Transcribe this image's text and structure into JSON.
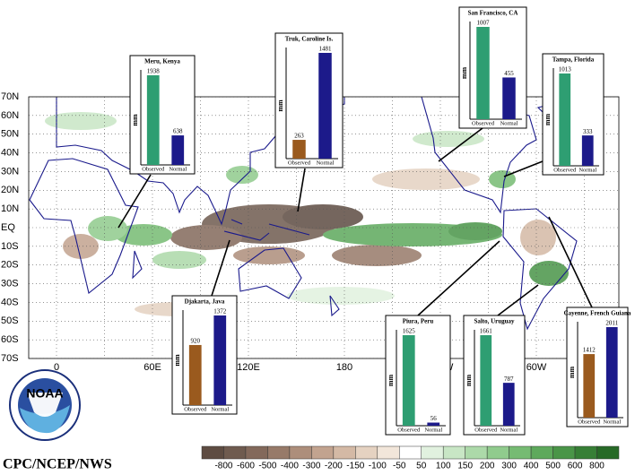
{
  "map": {
    "lat_labels": [
      "70N",
      "60N",
      "50N",
      "40N",
      "30N",
      "20N",
      "10N",
      "EQ",
      "10S",
      "20S",
      "30S",
      "40S",
      "50S",
      "60S",
      "70S"
    ],
    "lon_labels": [
      "0",
      "60E",
      "120E",
      "180",
      "120W",
      "60W"
    ]
  },
  "insets": [
    {
      "title": "Meru, Kenya",
      "ylabel": "mm",
      "categories": [
        "Observed",
        "Normal"
      ],
      "values": [
        1938,
        638
      ],
      "colors": [
        "#2e9e72",
        "#1c1a8a"
      ]
    },
    {
      "title": "Truk, Caroline Is.",
      "ylabel": "mm",
      "categories": [
        "Observed",
        "Normal"
      ],
      "values": [
        263,
        1481
      ],
      "colors": [
        "#9a5a1e",
        "#1c1a8a"
      ]
    },
    {
      "title": "San Francisco, CA",
      "ylabel": "mm",
      "categories": [
        "Observed",
        "Normal"
      ],
      "values": [
        1007,
        455
      ],
      "colors": [
        "#2e9e72",
        "#1c1a8a"
      ]
    },
    {
      "title": "Tampa, Florida",
      "ylabel": "mm",
      "categories": [
        "Observed",
        "Normal"
      ],
      "values": [
        1013,
        333
      ],
      "colors": [
        "#2e9e72",
        "#1c1a8a"
      ]
    },
    {
      "title": "Djakarta, Java",
      "ylabel": "mm",
      "categories": [
        "Observed",
        "Normal"
      ],
      "values": [
        920,
        1372
      ],
      "colors": [
        "#9a5a1e",
        "#1c1a8a"
      ]
    },
    {
      "title": "Piura, Peru",
      "ylabel": "mm",
      "categories": [
        "Observed",
        "Normal"
      ],
      "values": [
        1625,
        56
      ],
      "colors": [
        "#2e9e72",
        "#1c1a8a"
      ]
    },
    {
      "title": "Salto, Uruguay",
      "ylabel": "mm",
      "categories": [
        "Observed",
        "Normal"
      ],
      "values": [
        1661,
        787
      ],
      "colors": [
        "#2e9e72",
        "#1c1a8a"
      ]
    },
    {
      "title": "Cayenne, French Guiana",
      "ylabel": "mm",
      "categories": [
        "Observed",
        "Normal"
      ],
      "values": [
        1412,
        2011
      ],
      "colors": [
        "#9a5a1e",
        "#1c1a8a"
      ]
    }
  ],
  "legend": {
    "labels": [
      -800,
      -600,
      -500,
      -400,
      -300,
      -200,
      -150,
      -100,
      -50,
      50,
      100,
      150,
      200,
      300,
      400,
      500,
      600,
      800
    ],
    "colors": [
      "#5e4c42",
      "#6f5b4f",
      "#83695b",
      "#977a69",
      "#ad8e7b",
      "#c2a38f",
      "#d4b9a5",
      "#e5d2c1",
      "#f2e6da",
      "#ffffff",
      "#e1f1df",
      "#c8e6c5",
      "#acd9a9",
      "#90cb8d",
      "#76bb73",
      "#5ea95c",
      "#4a9548",
      "#377f36",
      "#276a27"
    ]
  },
  "logo": "NOAA",
  "credit": "CPC/NCEP/NWS"
}
